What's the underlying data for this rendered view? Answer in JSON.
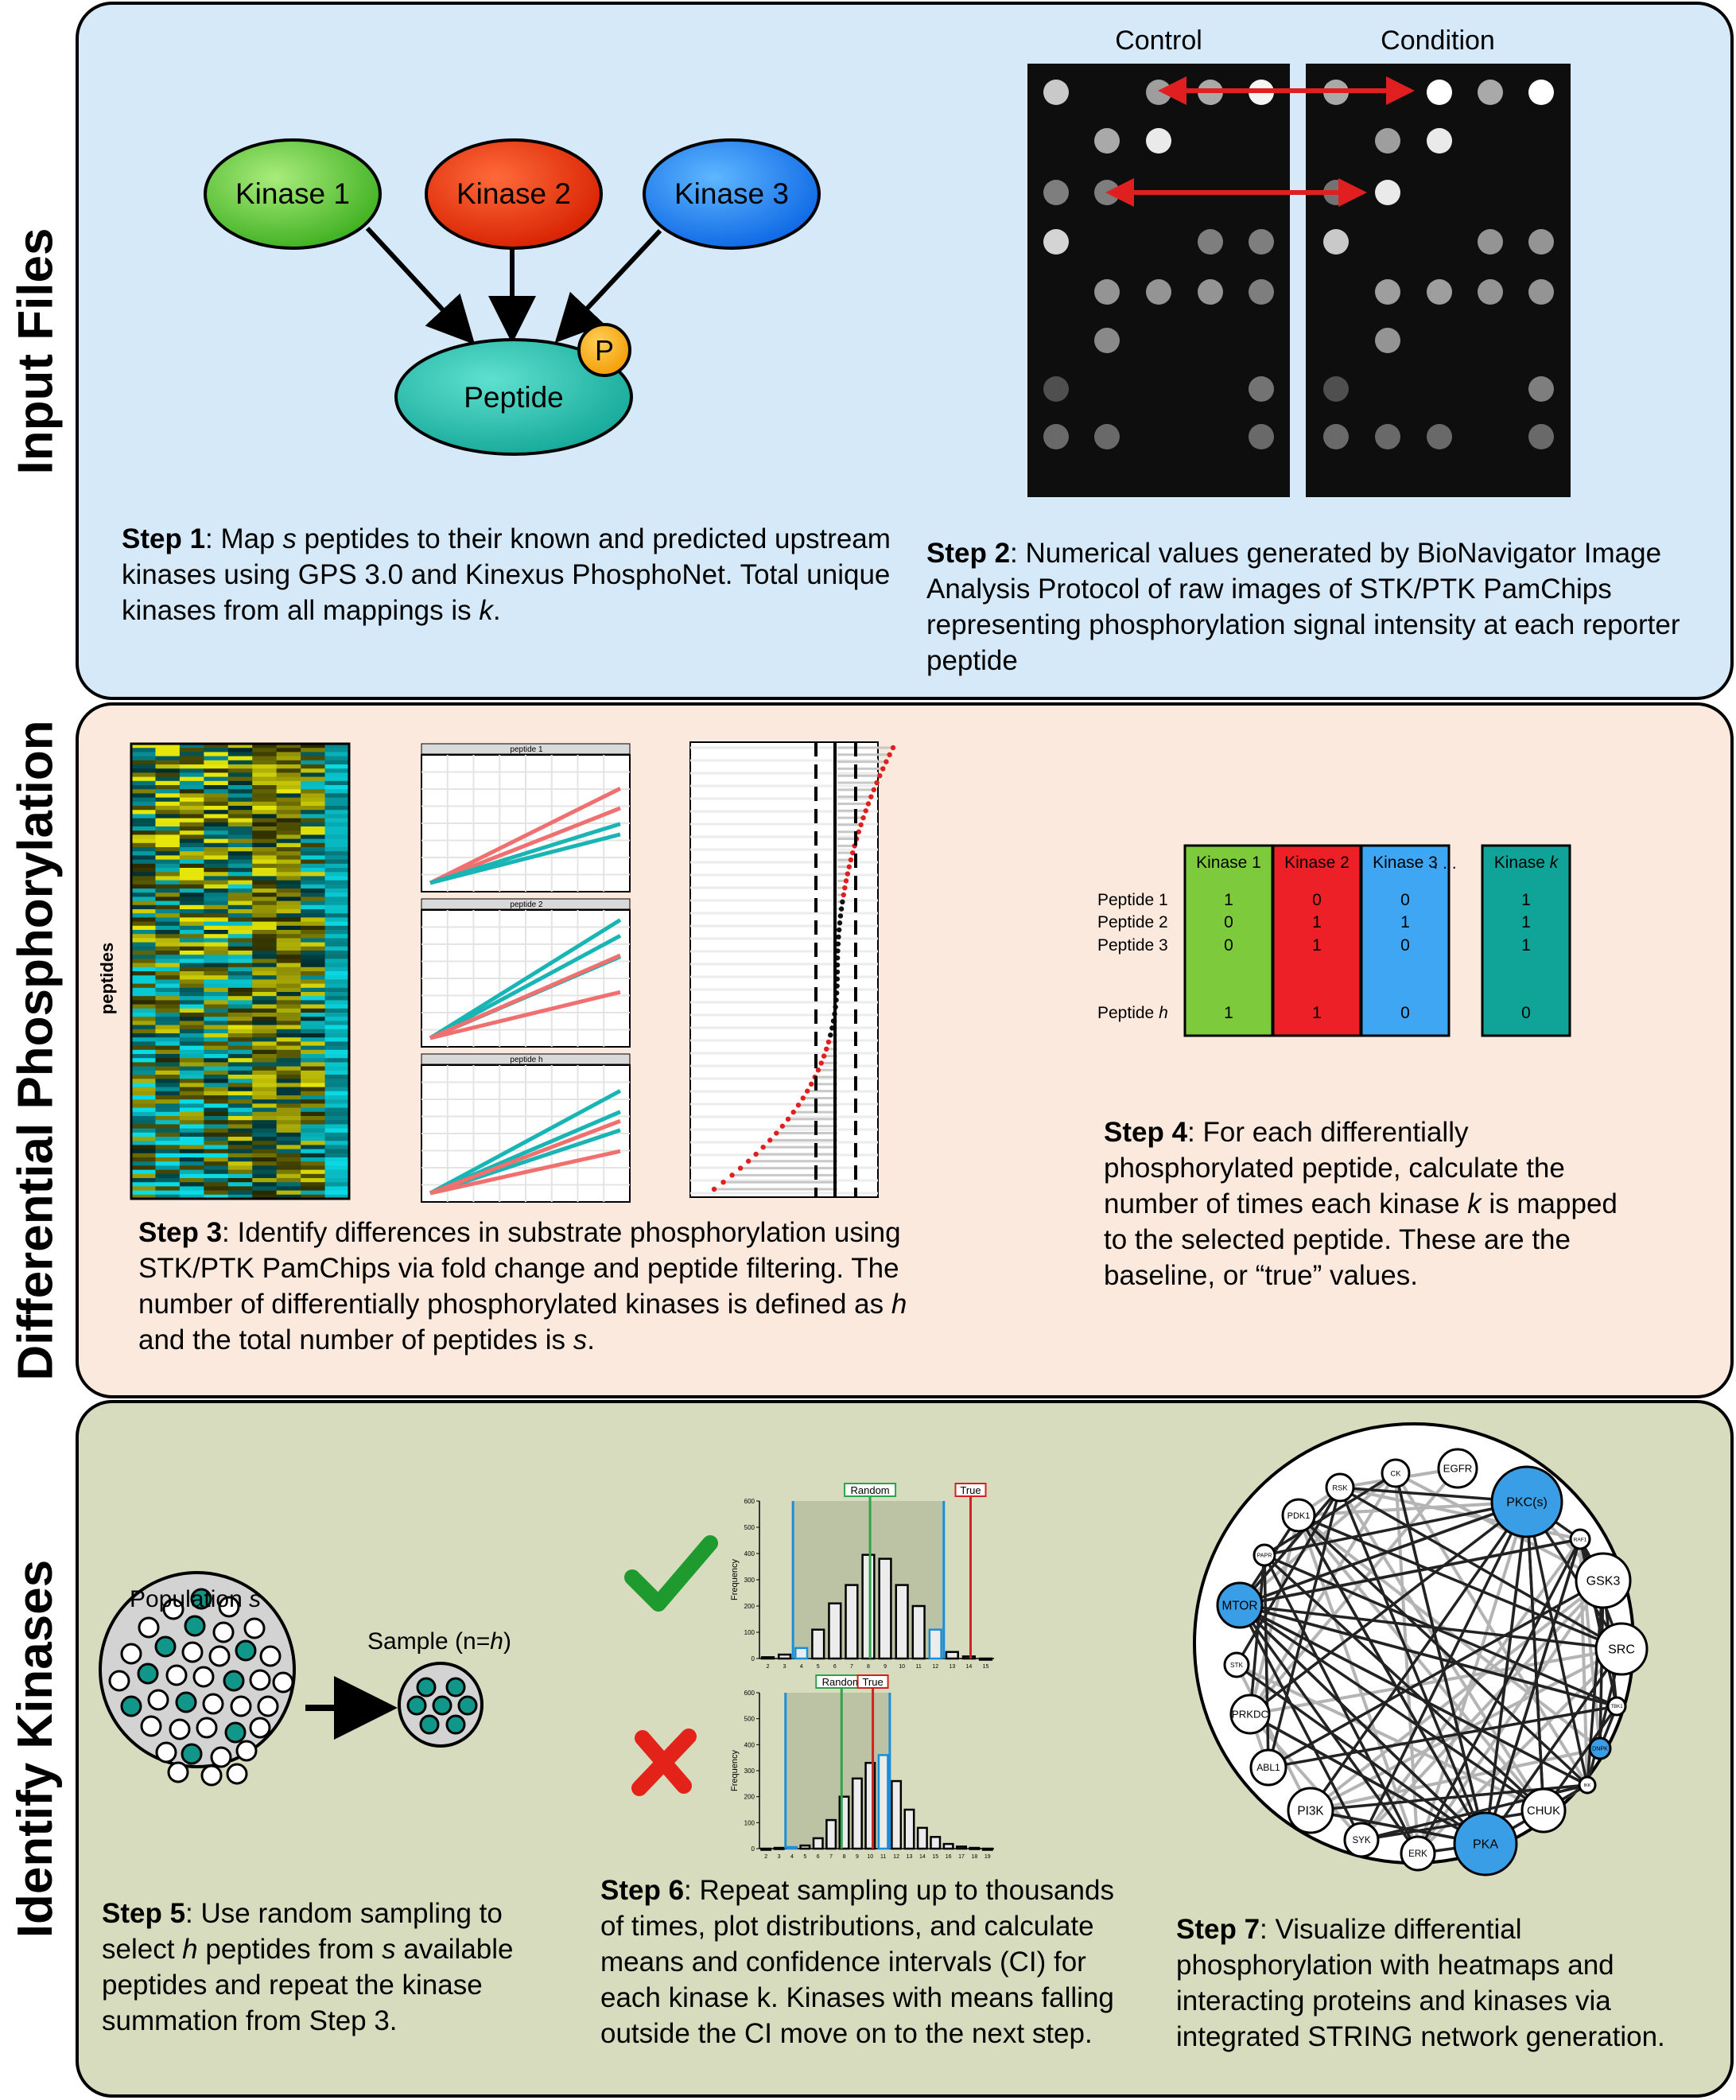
{
  "sections": {
    "input": "Input Files",
    "diff": "Differential Phosphorylation",
    "identify": "Identify Kinases"
  },
  "step1": {
    "kinase1": "Kinase 1",
    "kinase2": "Kinase 2",
    "kinase3": "Kinase 3",
    "peptide": "Peptide",
    "phospho": "P",
    "bold": "Step 1",
    "t1": ": Map ",
    "v1": "s",
    "t2": " peptides to their known and predicted upstream kinases using GPS 3.0 and Kinexus PhosphoNet. Total unique kinases from all mappings is ",
    "v2": "k",
    "t3": "."
  },
  "step2": {
    "control": "Control",
    "condition": "Condition",
    "bold": "Step 2",
    "text": ": Numerical values generated by BioNavigator Image Analysis Protocol of raw images of STK/PTK PamChips representing phosphorylation signal intensity at each reporter peptide"
  },
  "step3": {
    "heat_ylabel": "peptides",
    "facet1": "peptide 1",
    "facet2": "peptide 2",
    "facet3": "peptide h",
    "bold": "Step 3",
    "t1": ":  Identify differences in substrate phosphorylation using STK/PTK PamChips via fold change and peptide filtering. The number of differentially phosphorylated kinases is defined as ",
    "v1": "h",
    "t2": " and the total number of peptides is ",
    "v2": "s",
    "t3": "."
  },
  "step4": {
    "cols": [
      "Kinase 1",
      "Kinase 2",
      "Kinase 3",
      "Kinase "
    ],
    "colk": "k",
    "dots": ". . .",
    "rows": [
      "Peptide 1",
      "Peptide 2",
      "Peptide 3",
      "Peptide "
    ],
    "rowh": "h",
    "values": [
      [
        "1",
        "0",
        "0",
        "1"
      ],
      [
        "0",
        "1",
        "1",
        "1"
      ],
      [
        "0",
        "1",
        "0",
        "1"
      ],
      [
        "1",
        "1",
        "0",
        "0"
      ]
    ],
    "colors": [
      "#7dcb3c",
      "#ee2027",
      "#3ea6f2",
      "#0fa497"
    ],
    "bold": "Step 4",
    "t1": ": For each differentially phosphorylated peptide, calculate the number of times each kinase ",
    "v1": "k",
    "t2": " is mapped to the selected peptide. These are the baseline, or “true” values."
  },
  "step5": {
    "population": "Population ",
    "pop_var": "s",
    "sample": "Sample (n=",
    "sample_var": "h",
    "sample_end": ")",
    "bold": "Step 5",
    "t1": ": Use random sampling to select ",
    "v1": "h",
    "t2": " peptides from ",
    "v2": "s",
    "t3": " available peptides and repeat the kinase summation from Step 3."
  },
  "step6": {
    "random": "Random",
    "true": "True",
    "ylabel": "Frequency",
    "yticks1": [
      "0",
      "100",
      "200",
      "300",
      "400",
      "500",
      "600"
    ],
    "xticks1": [
      "2",
      "3",
      "4",
      "5",
      "6",
      "7",
      "8",
      "9",
      "10",
      "11",
      "12",
      "13",
      "14",
      "15"
    ],
    "xticks2": [
      "2",
      "3",
      "4",
      "5",
      "6",
      "7",
      "8",
      "9",
      "10",
      "11",
      "12",
      "13",
      "14",
      "15",
      "16",
      "17",
      "18",
      "19"
    ],
    "bold": "Step 6",
    "text": ": Repeat sampling up to thousands of times, plot distributions, and calculate means and confidence intervals (CI) for each kinase k. Kinases with means falling outside the CI move on to the next step."
  },
  "step7": {
    "nodes": [
      "CK",
      "EGFR",
      "RSK",
      "PKC(s)",
      "PDK1",
      "RAF1",
      "PAPR",
      "GSK3",
      "MTOR",
      "SRC",
      "STK",
      "PRKDC",
      "TBK1",
      "DNPK",
      "ABL1",
      "IKK",
      "PI3K",
      "CHUK",
      "SYK",
      "ERK",
      "PKA"
    ],
    "bold": "Step 7",
    "text": ": Visualize differential phosphorylation with heatmaps and interacting proteins and kinases via integrated STRING network generation."
  },
  "chart_data": [
    {
      "type": "bar",
      "title": "",
      "xlabel": "",
      "ylabel": "Frequency",
      "ylim": [
        0,
        600
      ],
      "categories": [
        "2",
        "3",
        "4",
        "5",
        "6",
        "7",
        "8",
        "9",
        "10",
        "11",
        "12",
        "13",
        "14",
        "15"
      ],
      "values": [
        5,
        15,
        40,
        110,
        210,
        280,
        395,
        380,
        280,
        200,
        110,
        25,
        8,
        0
      ],
      "annotations": [
        "Random",
        "True"
      ]
    },
    {
      "type": "bar",
      "title": "",
      "xlabel": "",
      "ylabel": "Frequency",
      "ylim": [
        0,
        600
      ],
      "categories": [
        "2",
        "3",
        "4",
        "5",
        "6",
        "7",
        "8",
        "9",
        "10",
        "11",
        "12",
        "13",
        "14",
        "15",
        "16",
        "17",
        "18",
        "19"
      ],
      "values": [
        0,
        3,
        6,
        12,
        40,
        110,
        200,
        270,
        330,
        360,
        260,
        150,
        80,
        45,
        18,
        8,
        3,
        0
      ],
      "annotations": [
        "Random",
        "True"
      ]
    }
  ]
}
